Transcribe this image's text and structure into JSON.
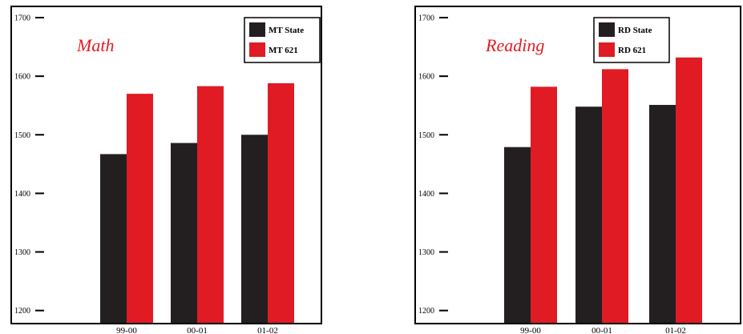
{
  "chart_data": [
    {
      "type": "bar",
      "title": "Math",
      "categories": [
        "99-00",
        "00-01",
        "01-02"
      ],
      "series": [
        {
          "name": "MT State",
          "values": [
            1467,
            1486,
            1500
          ],
          "color": "#231f20"
        },
        {
          "name": "MT 621",
          "values": [
            1570,
            1583,
            1588
          ],
          "color": "#e01b24"
        }
      ],
      "yticks": [
        "1200",
        "1300",
        "1400",
        "1500",
        "1600",
        "1700"
      ],
      "ylim": [
        1190,
        1700
      ],
      "xlabel": "",
      "ylabel": "",
      "grid": false,
      "legend": "top-right"
    },
    {
      "type": "bar",
      "title": "Reading",
      "categories": [
        "99-00",
        "00-01",
        "01-02"
      ],
      "series": [
        {
          "name": "RD State",
          "values": [
            1479,
            1548,
            1551
          ],
          "color": "#231f20"
        },
        {
          "name": "RD 621",
          "values": [
            1582,
            1612,
            1632
          ],
          "color": "#e01b24"
        }
      ],
      "yticks": [
        "1200",
        "1300",
        "1400",
        "1500",
        "1600",
        "1700"
      ],
      "ylim": [
        1190,
        1700
      ],
      "xlabel": "",
      "ylabel": "",
      "grid": false,
      "legend": "top-right"
    }
  ],
  "colors": {
    "title": "#e01b24",
    "frame": "#000000"
  }
}
